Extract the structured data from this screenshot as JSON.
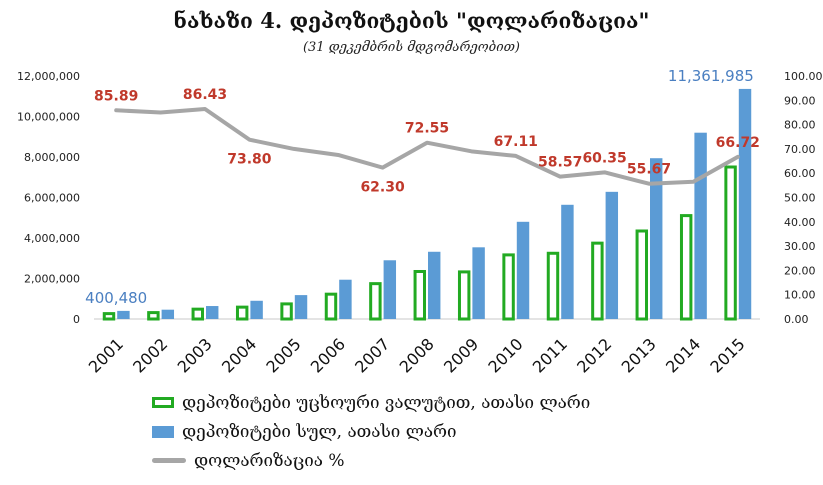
{
  "title": "ნახაზი 4. დეპოზიტების \"დოლარიზაცია\"",
  "subtitle": "(31 დეკემბრის მდგომარეობით)",
  "chart_data": {
    "type": "bar",
    "categories": [
      "2001",
      "2002",
      "2003",
      "2004",
      "2005",
      "2006",
      "2007",
      "2008",
      "2009",
      "2010",
      "2011",
      "2012",
      "2013",
      "2014",
      "2015"
    ],
    "series": [
      {
        "name": "დეპოზიტები უცხოური ვალუტით, ათასი ლარი",
        "type": "bar",
        "style": "outline",
        "color": "#22aa22",
        "axis": "left",
        "values": [
          340000,
          390000,
          560000,
          660000,
          820000,
          1300000,
          1820000,
          2420000,
          2400000,
          3240000,
          3320000,
          3820000,
          4420000,
          5180000,
          7580000
        ]
      },
      {
        "name": "დეპოზიტები სულ, ათასი ლარი",
        "type": "bar",
        "style": "filled",
        "color": "#5b9bd5",
        "axis": "left",
        "values": [
          400480,
          460000,
          640000,
          900000,
          1180000,
          1940000,
          2900000,
          3320000,
          3540000,
          4800000,
          5640000,
          6280000,
          7940000,
          9200000,
          11361985
        ]
      },
      {
        "name": "დოლარიზაცია %",
        "type": "line",
        "color": "#a6a6a6",
        "axis": "right",
        "values": [
          85.89,
          85.0,
          86.43,
          73.8,
          70.0,
          67.5,
          62.3,
          72.55,
          69.0,
          67.11,
          58.57,
          60.35,
          55.67,
          56.5,
          66.72
        ]
      }
    ],
    "data_labels": [
      {
        "series": 2,
        "index": 0,
        "text": "85.89",
        "color": "#c0392b",
        "pos": "above"
      },
      {
        "series": 2,
        "index": 2,
        "text": "86.43",
        "color": "#c0392b",
        "pos": "above"
      },
      {
        "series": 2,
        "index": 3,
        "text": "73.80",
        "color": "#c0392b",
        "pos": "below"
      },
      {
        "series": 2,
        "index": 6,
        "text": "62.30",
        "color": "#c0392b",
        "pos": "below"
      },
      {
        "series": 2,
        "index": 7,
        "text": "72.55",
        "color": "#c0392b",
        "pos": "above"
      },
      {
        "series": 2,
        "index": 9,
        "text": "67.11",
        "color": "#c0392b",
        "pos": "above"
      },
      {
        "series": 2,
        "index": 10,
        "text": "58.57",
        "color": "#c0392b",
        "pos": "above"
      },
      {
        "series": 2,
        "index": 11,
        "text": "60.35",
        "color": "#c0392b",
        "pos": "above"
      },
      {
        "series": 2,
        "index": 12,
        "text": "55.67",
        "color": "#c0392b",
        "pos": "above"
      },
      {
        "series": 2,
        "index": 14,
        "text": "66.72",
        "color": "#c0392b",
        "pos": "above"
      },
      {
        "series": 1,
        "index": 0,
        "text": "400,480",
        "color": "#4a7fc1",
        "pos": "above"
      },
      {
        "series": 1,
        "index": 14,
        "text": "11,361,985",
        "color": "#4a7fc1",
        "pos": "above"
      }
    ],
    "left_axis": {
      "ylim": [
        0,
        12000000
      ],
      "ticks": [
        0,
        2000000,
        4000000,
        6000000,
        8000000,
        10000000,
        12000000
      ],
      "tick_labels": [
        "0",
        "2,000,000",
        "4,000,000",
        "6,000,000",
        "8,000,000",
        "10,000,000",
        "12,000,000"
      ]
    },
    "right_axis": {
      "ylim": [
        0,
        100
      ],
      "ticks": [
        0,
        10,
        20,
        30,
        40,
        50,
        60,
        70,
        80,
        90,
        100
      ],
      "tick_labels": [
        "0.00",
        "10.00",
        "20.00",
        "30.00",
        "40.00",
        "50.00",
        "60.00",
        "70.00",
        "80.00",
        "90.00",
        "100.00"
      ]
    },
    "grid": false,
    "legend_position": "bottom"
  }
}
